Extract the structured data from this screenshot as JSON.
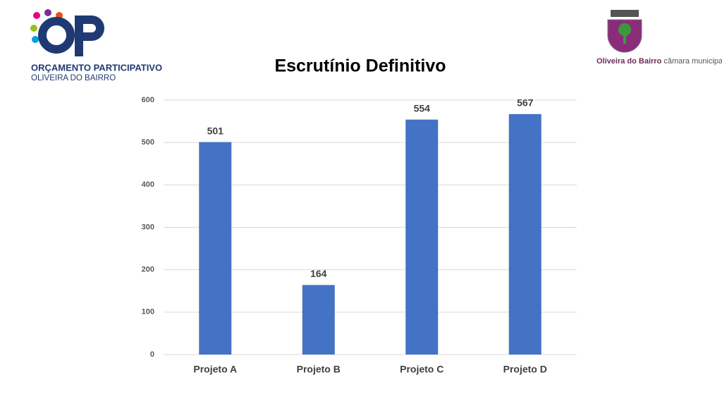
{
  "branding": {
    "program_title": "ORÇAMENTO PARTICIPATIVO",
    "program_subtitle": "OLIVEIRA DO BAIRRO",
    "municipality_name": "Oliveira do Bairro",
    "municipality_suffix": "câmara municipal"
  },
  "chart_data": {
    "type": "bar",
    "title": "Escrutínio Definitivo",
    "categories": [
      "Projeto A",
      "Projeto B",
      "Projeto C",
      "Projeto D"
    ],
    "values": [
      501,
      164,
      554,
      567
    ],
    "color": "#4472c4",
    "ylim": [
      0,
      600
    ],
    "yticks": [
      0,
      100,
      200,
      300,
      400,
      500,
      600
    ],
    "grid": true,
    "data_labels": true
  }
}
